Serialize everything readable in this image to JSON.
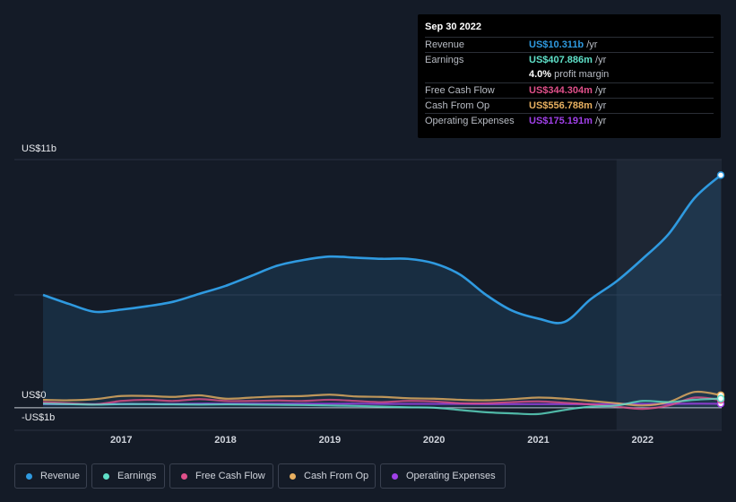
{
  "tooltip": {
    "date": "Sep 30 2022",
    "rows": [
      {
        "label": "Revenue",
        "value": "US$10.311b",
        "suffix": " /yr",
        "color": "#2f9ae0"
      },
      {
        "label": "Earnings",
        "value": "US$407.886m",
        "suffix": " /yr",
        "color": "#5fe0c8"
      },
      {
        "label": "",
        "value": "4.0%",
        "suffix": " profit margin",
        "color": "#ffffff"
      },
      {
        "label": "Free Cash Flow",
        "value": "US$344.304m",
        "suffix": " /yr",
        "color": "#e0508a"
      },
      {
        "label": "Cash From Op",
        "value": "US$556.788m",
        "suffix": " /yr",
        "color": "#e8b060"
      },
      {
        "label": "Operating Expenses",
        "value": "US$175.191m",
        "suffix": " /yr",
        "color": "#a040e8"
      }
    ]
  },
  "chart_data": {
    "type": "line",
    "title": "",
    "xlabel": "",
    "ylabel": "",
    "y_axis_labels": [
      "US$11b",
      "US$0",
      "-US$1b"
    ],
    "x_ticks": [
      "2017",
      "2018",
      "2019",
      "2020",
      "2021",
      "2022"
    ],
    "xlim": [
      2016.25,
      2022.75
    ],
    "ylim": [
      -1,
      11
    ],
    "forecast_shade_start": 2021.75,
    "series": [
      {
        "name": "Revenue",
        "color": "#2f9ae0",
        "filled": true,
        "x": [
          2016.25,
          2016.5,
          2016.75,
          2017.0,
          2017.25,
          2017.5,
          2017.75,
          2018.0,
          2018.25,
          2018.5,
          2018.75,
          2019.0,
          2019.25,
          2019.5,
          2019.75,
          2020.0,
          2020.25,
          2020.5,
          2020.75,
          2021.0,
          2021.25,
          2021.5,
          2021.75,
          2022.0,
          2022.25,
          2022.5,
          2022.75
        ],
        "values": [
          5.0,
          4.6,
          4.25,
          4.35,
          4.5,
          4.7,
          5.05,
          5.4,
          5.85,
          6.3,
          6.55,
          6.7,
          6.65,
          6.6,
          6.6,
          6.4,
          5.9,
          5.0,
          4.3,
          3.95,
          3.8,
          4.8,
          5.6,
          6.6,
          7.7,
          9.3,
          10.311
        ]
      },
      {
        "name": "Earnings",
        "color": "#5fe0c8",
        "filled": false,
        "x": [
          2016.25,
          2016.5,
          2016.75,
          2017.0,
          2017.25,
          2017.5,
          2017.75,
          2018.0,
          2018.25,
          2018.5,
          2018.75,
          2019.0,
          2019.25,
          2019.5,
          2019.75,
          2020.0,
          2020.25,
          2020.5,
          2020.75,
          2021.0,
          2021.25,
          2021.5,
          2021.75,
          2022.0,
          2022.25,
          2022.5,
          2022.75
        ],
        "values": [
          0.18,
          0.16,
          0.14,
          0.16,
          0.16,
          0.15,
          0.14,
          0.15,
          0.14,
          0.13,
          0.12,
          0.1,
          0.08,
          0.05,
          0.02,
          0.0,
          -0.1,
          -0.2,
          -0.25,
          -0.28,
          -0.1,
          0.05,
          0.1,
          0.3,
          0.25,
          0.35,
          0.408
        ]
      },
      {
        "name": "Free Cash Flow",
        "color": "#e0508a",
        "filled": false,
        "x": [
          2016.25,
          2016.5,
          2016.75,
          2017.0,
          2017.25,
          2017.5,
          2017.75,
          2018.0,
          2018.25,
          2018.5,
          2018.75,
          2019.0,
          2019.25,
          2019.5,
          2019.75,
          2020.0,
          2020.25,
          2020.5,
          2020.75,
          2021.0,
          2021.25,
          2021.5,
          2021.75,
          2022.0,
          2022.25,
          2022.5,
          2022.75
        ],
        "values": [
          0.25,
          0.2,
          0.15,
          0.3,
          0.35,
          0.3,
          0.38,
          0.3,
          0.3,
          0.32,
          0.3,
          0.35,
          0.3,
          0.25,
          0.3,
          0.28,
          0.2,
          0.2,
          0.25,
          0.28,
          0.22,
          0.15,
          0.05,
          -0.05,
          0.1,
          0.45,
          0.344
        ]
      },
      {
        "name": "Cash From Op",
        "color": "#e8b060",
        "filled": false,
        "x": [
          2016.25,
          2016.5,
          2016.75,
          2017.0,
          2017.25,
          2017.5,
          2017.75,
          2018.0,
          2018.25,
          2018.5,
          2018.75,
          2019.0,
          2019.25,
          2019.5,
          2019.75,
          2020.0,
          2020.25,
          2020.5,
          2020.75,
          2021.0,
          2021.25,
          2021.5,
          2021.75,
          2022.0,
          2022.25,
          2022.5,
          2022.75
        ],
        "values": [
          0.35,
          0.33,
          0.38,
          0.52,
          0.52,
          0.48,
          0.55,
          0.4,
          0.45,
          0.5,
          0.52,
          0.58,
          0.5,
          0.48,
          0.42,
          0.4,
          0.35,
          0.33,
          0.38,
          0.45,
          0.4,
          0.3,
          0.2,
          0.1,
          0.25,
          0.7,
          0.557
        ]
      },
      {
        "name": "Operating Expenses",
        "color": "#a040e8",
        "filled": false,
        "x": [
          2016.25,
          2016.5,
          2016.75,
          2017.0,
          2017.25,
          2017.5,
          2017.75,
          2018.0,
          2018.25,
          2018.5,
          2018.75,
          2019.0,
          2019.25,
          2019.5,
          2019.75,
          2020.0,
          2020.25,
          2020.5,
          2020.75,
          2021.0,
          2021.25,
          2021.5,
          2021.75,
          2022.0,
          2022.25,
          2022.5,
          2022.75
        ],
        "values": [
          0.16,
          0.16,
          0.16,
          0.17,
          0.17,
          0.17,
          0.18,
          0.18,
          0.18,
          0.18,
          0.18,
          0.18,
          0.18,
          0.17,
          0.17,
          0.17,
          0.17,
          0.16,
          0.16,
          0.16,
          0.16,
          0.16,
          0.17,
          0.17,
          0.17,
          0.18,
          0.175
        ]
      }
    ]
  },
  "legend": [
    {
      "label": "Revenue",
      "color": "#2f9ae0"
    },
    {
      "label": "Earnings",
      "color": "#5fe0c8"
    },
    {
      "label": "Free Cash Flow",
      "color": "#e0508a"
    },
    {
      "label": "Cash From Op",
      "color": "#e8b060"
    },
    {
      "label": "Operating Expenses",
      "color": "#a040e8"
    }
  ]
}
